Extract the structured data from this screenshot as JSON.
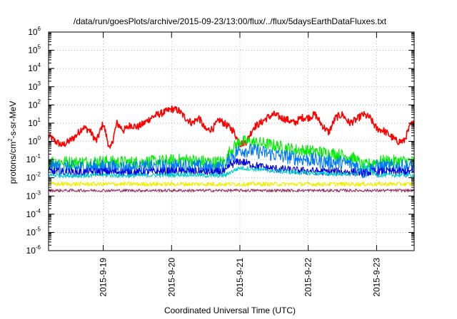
{
  "chart_data": {
    "type": "line",
    "title": "/data/run/goesPlots/archive/2015-09-23/13:00/flux/../flux/5daysEarthDataFluxes.txt",
    "xlabel": "Coordinated Universal Time (UTC)",
    "ylabel": "protons/cm2-s-sr-MeV",
    "ylabel_parts": {
      "pre": "protons/cm",
      "sup": "2",
      "post": "-s-sr-MeV"
    },
    "y_scale": "log",
    "ylim_exponent": [
      -6,
      6
    ],
    "yticks": [
      {
        "base": "10",
        "exp": "-6"
      },
      {
        "base": "10",
        "exp": "-5"
      },
      {
        "base": "10",
        "exp": "-4"
      },
      {
        "base": "10",
        "exp": "-3"
      },
      {
        "base": "10",
        "exp": "-2"
      },
      {
        "base": "10",
        "exp": "-1"
      },
      {
        "base": "10",
        "exp": "0"
      },
      {
        "base": "10",
        "exp": "1"
      },
      {
        "base": "10",
        "exp": "2"
      },
      {
        "base": "10",
        "exp": "3"
      },
      {
        "base": "10",
        "exp": "4"
      },
      {
        "base": "10",
        "exp": "5"
      },
      {
        "base": "10",
        "exp": "6"
      }
    ],
    "xlim_days": [
      18.2,
      23.55
    ],
    "xticks": [
      {
        "label": "2015-9-19",
        "day": 19
      },
      {
        "label": "2015-9-20",
        "day": 20
      },
      {
        "label": "2015-9-21",
        "day": 21
      },
      {
        "label": "2015-9-22",
        "day": 22
      },
      {
        "label": "2015-9-23",
        "day": 23
      }
    ],
    "grid": true,
    "series": [
      {
        "color": "#ff0000",
        "x": [
          18.2,
          18.3,
          18.4,
          18.5,
          18.6,
          18.7,
          18.8,
          18.9,
          19.0,
          19.1,
          19.2,
          19.3,
          19.4,
          19.5,
          19.6,
          19.7,
          19.8,
          19.9,
          20.0,
          20.1,
          20.2,
          20.3,
          20.4,
          20.5,
          20.6,
          20.7,
          20.8,
          20.9,
          21.0,
          21.1,
          21.2,
          21.3,
          21.4,
          21.5,
          21.6,
          21.7,
          21.8,
          21.9,
          22.0,
          22.1,
          22.2,
          22.3,
          22.4,
          22.5,
          22.6,
          22.7,
          22.8,
          22.9,
          23.0,
          23.1,
          23.2,
          23.3,
          23.4,
          23.5,
          23.55
        ],
        "y": [
          2,
          1,
          0.6,
          1,
          2,
          6,
          4,
          1,
          10,
          0.3,
          10,
          4,
          8,
          6,
          10,
          20,
          30,
          40,
          60,
          50,
          20,
          10,
          20,
          4,
          5,
          15,
          8,
          4,
          0.7,
          1,
          6,
          10,
          20,
          30,
          20,
          15,
          10,
          20,
          20,
          30,
          8,
          3,
          20,
          30,
          10,
          15,
          30,
          20,
          5,
          4,
          2,
          1,
          1,
          8,
          10
        ],
        "spread": 0.2
      },
      {
        "color": "#00ee00",
        "x": [
          18.2,
          18.6,
          19.0,
          19.4,
          19.8,
          20.2,
          20.6,
          20.8,
          20.85,
          21.0,
          21.2,
          21.4,
          21.6,
          21.8,
          22.0,
          22.2,
          22.4,
          22.6,
          22.7,
          22.8,
          23.0,
          23.3,
          23.55
        ],
        "y": [
          0.08,
          0.07,
          0.08,
          0.07,
          0.08,
          0.1,
          0.07,
          0.08,
          0.3,
          1,
          0.9,
          0.7,
          0.5,
          0.35,
          0.3,
          0.25,
          0.2,
          0.15,
          0.1,
          0.04,
          0.08,
          0.08,
          0.08
        ],
        "spread": 0.35
      },
      {
        "color": "#0077ff",
        "x": [
          18.2,
          18.6,
          19.0,
          19.4,
          19.8,
          20.2,
          20.6,
          20.8,
          20.85,
          21.0,
          21.2,
          21.4,
          21.6,
          21.8,
          22.0,
          22.2,
          22.4,
          22.6,
          22.7,
          22.8,
          23.0,
          23.3,
          23.55
        ],
        "y": [
          0.04,
          0.035,
          0.04,
          0.035,
          0.04,
          0.045,
          0.035,
          0.04,
          0.12,
          0.35,
          0.3,
          0.22,
          0.16,
          0.12,
          0.1,
          0.08,
          0.07,
          0.06,
          0.05,
          0.02,
          0.04,
          0.04,
          0.04
        ],
        "spread": 0.4
      },
      {
        "color": "#0000dd",
        "x": [
          18.2,
          18.6,
          19.0,
          19.4,
          19.8,
          20.2,
          20.6,
          20.8,
          20.85,
          21.0,
          21.2,
          21.4,
          21.6,
          21.8,
          22.0,
          22.2,
          22.4,
          22.6,
          22.7,
          22.8,
          23.0,
          23.3,
          23.55
        ],
        "y": [
          0.022,
          0.02,
          0.022,
          0.02,
          0.022,
          0.023,
          0.02,
          0.022,
          0.05,
          0.08,
          0.05,
          0.035,
          0.03,
          0.025,
          0.024,
          0.022,
          0.022,
          0.021,
          0.02,
          0.02,
          0.022,
          0.022,
          0.022
        ],
        "spread": 0.22
      },
      {
        "color": "#00cccc",
        "x": [
          18.2,
          18.6,
          19.0,
          19.4,
          19.8,
          20.2,
          20.6,
          20.8,
          20.85,
          21.0,
          21.2,
          21.4,
          21.6,
          21.8,
          22.0,
          22.2,
          22.4,
          22.6,
          22.7,
          22.8,
          23.0,
          23.3,
          23.55
        ],
        "y": [
          0.014,
          0.013,
          0.014,
          0.013,
          0.014,
          0.015,
          0.013,
          0.014,
          0.02,
          0.035,
          0.03,
          0.026,
          0.022,
          0.02,
          0.018,
          0.017,
          0.016,
          0.016,
          0.015,
          0.05,
          0.014,
          0.014,
          0.014
        ],
        "spread": 0.12
      },
      {
        "color": "#eeee00",
        "x": [
          18.2,
          18.8,
          19.4,
          20.0,
          20.6,
          21.2,
          21.8,
          22.4,
          23.0,
          23.55
        ],
        "y": [
          0.0045,
          0.0045,
          0.0045,
          0.0045,
          0.0045,
          0.0045,
          0.0045,
          0.0045,
          0.0045,
          0.0045
        ],
        "spread": 0.12
      },
      {
        "color": "#993366",
        "x": [
          18.2,
          18.8,
          19.4,
          20.0,
          20.6,
          21.2,
          21.8,
          22.4,
          23.0,
          23.55
        ],
        "y": [
          0.002,
          0.002,
          0.002,
          0.002,
          0.002,
          0.002,
          0.002,
          0.002,
          0.002,
          0.002
        ],
        "spread": 0.08
      }
    ]
  }
}
